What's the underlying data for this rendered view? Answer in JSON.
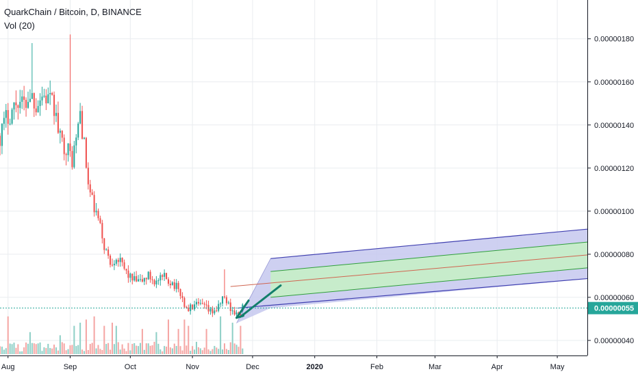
{
  "chart_data": {
    "type": "candlestick",
    "title": "QuarkChain / Bitcoin, D, BINANCE",
    "indicator": "Vol (20)",
    "x_axis": {
      "tick_labels": [
        "Aug",
        "Sep",
        "Oct",
        "Nov",
        "Dec",
        "2020",
        "Feb",
        "Mar",
        "Apr",
        "May"
      ],
      "range": [
        "2019-07-28",
        "2020-05-16"
      ]
    },
    "y_axis": {
      "tick_labels": [
        "0.00000040",
        "0.00000060",
        "0.00000080",
        "0.00000100",
        "0.00000120",
        "0.00000140",
        "0.00000160",
        "0.00000180"
      ],
      "range": [
        3.3e-07,
        1.98e-06
      ],
      "position": "right"
    },
    "last_price": {
      "value": 5.5e-07,
      "label": "0.00000055",
      "color": "#26a69a"
    },
    "colors": {
      "up": "#26a69a",
      "down": "#ef5350",
      "vol_up": "#8fd0c7",
      "vol_down": "#f5a6a4",
      "grid": "#e9ecef",
      "channel_fill": "#c5c8ee",
      "channel_border": "#3f3fb0",
      "inner_fill": "#c7eec7",
      "inner_line": "#2e9e3a",
      "midline": "#d0644f",
      "arrow": "#137f6b"
    },
    "price_path": [
      [
        "2019-07-28",
        1.35e-06
      ],
      [
        "2019-07-31",
        1.43e-06
      ],
      [
        "2019-08-03",
        1.47e-06
      ],
      [
        "2019-08-06",
        1.52e-06
      ],
      [
        "2019-08-09",
        1.49e-06
      ],
      [
        "2019-08-12",
        1.55e-06
      ],
      [
        "2019-08-15",
        1.5e-06
      ],
      [
        "2019-08-18",
        1.54e-06
      ],
      [
        "2019-08-21",
        1.52e-06
      ],
      [
        "2019-08-24",
        1.48e-06
      ],
      [
        "2019-08-27",
        1.33e-06
      ],
      [
        "2019-08-30",
        1.3e-06
      ],
      [
        "2019-09-02",
        1.24e-06
      ],
      [
        "2019-09-04",
        1.33e-06
      ],
      [
        "2019-09-06",
        1.46e-06
      ],
      [
        "2019-09-08",
        1.3e-06
      ],
      [
        "2019-09-10",
        1.12e-06
      ],
      [
        "2019-09-12",
        1.04e-06
      ],
      [
        "2019-09-15",
        9.6e-07
      ],
      [
        "2019-09-18",
        8.4e-07
      ],
      [
        "2019-09-21",
        7.6e-07
      ],
      [
        "2019-09-24",
        7.9e-07
      ],
      [
        "2019-09-28",
        7.3e-07
      ],
      [
        "2019-10-02",
        6.8e-07
      ],
      [
        "2019-10-06",
        6.7e-07
      ],
      [
        "2019-10-10",
        7e-07
      ],
      [
        "2019-10-14",
        6.7e-07
      ],
      [
        "2019-10-18",
        6.9e-07
      ],
      [
        "2019-10-22",
        6.7e-07
      ],
      [
        "2019-10-26",
        6.2e-07
      ],
      [
        "2019-10-29",
        5.4e-07
      ],
      [
        "2019-11-02",
        5.6e-07
      ],
      [
        "2019-11-06",
        5.6e-07
      ],
      [
        "2019-11-10",
        5.3e-07
      ],
      [
        "2019-11-14",
        5.5e-07
      ],
      [
        "2019-11-16",
        6e-07
      ],
      [
        "2019-11-18",
        5.8e-07
      ],
      [
        "2019-11-21",
        5.4e-07
      ],
      [
        "2019-11-24",
        5.1e-07
      ],
      [
        "2019-11-26",
        5.5e-07
      ]
    ],
    "volume_spikes": [
      [
        "2019-08-01",
        0.6
      ],
      [
        "2019-08-12",
        0.35
      ],
      [
        "2019-08-27",
        0.3
      ],
      [
        "2019-09-03",
        0.45
      ],
      [
        "2019-09-06",
        0.5
      ],
      [
        "2019-09-09",
        0.55
      ],
      [
        "2019-09-13",
        0.6
      ],
      [
        "2019-09-18",
        0.45
      ],
      [
        "2019-09-22",
        0.5
      ],
      [
        "2019-09-24",
        0.45
      ],
      [
        "2019-10-07",
        0.4
      ],
      [
        "2019-10-14",
        0.35
      ],
      [
        "2019-10-20",
        0.55
      ],
      [
        "2019-10-25",
        0.4
      ],
      [
        "2019-10-28",
        0.55
      ],
      [
        "2019-10-30",
        0.45
      ],
      [
        "2019-11-08",
        0.4
      ],
      [
        "2019-11-15",
        0.6
      ],
      [
        "2019-11-21",
        0.5
      ],
      [
        "2019-11-25",
        0.45
      ]
    ],
    "regression_channel": {
      "start": "2019-12-10",
      "end": "2020-05-20",
      "upper": [
        7.8e-07,
        9.2e-07
      ],
      "inner_upper": [
        7.2e-07,
        8.6e-07
      ],
      "mid": [
        6.6e-07,
        8e-07
      ],
      "inner_lower": [
        6e-07,
        7.4e-07
      ],
      "lower": [
        5.5e-07,
        6.9e-07
      ]
    },
    "channel_entry": {
      "from": [
        "2019-11-23",
        4.8e-07
      ],
      "to": [
        "2019-12-10",
        7.8e-07
      ]
    },
    "midline_start": [
      "2019-11-20",
      6.5e-07
    ],
    "arrows": [
      {
        "from": [
          "2019-11-23",
          5.05e-07
        ],
        "to": [
          "2019-11-29",
          5.85e-07
        ]
      },
      {
        "from": [
          "2019-11-25",
          5.1e-07
        ],
        "to": [
          "2019-12-15",
          6.55e-07
        ]
      }
    ]
  }
}
